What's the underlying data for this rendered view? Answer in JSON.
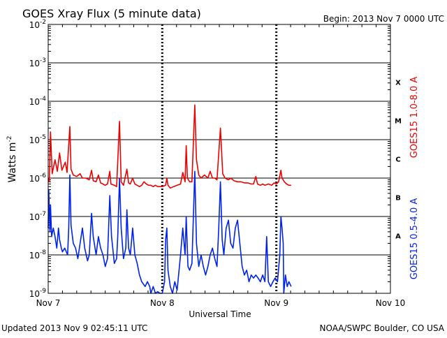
{
  "header": {
    "title": "GOES Xray Flux (5 minute data)",
    "begin": "Begin:  2013 Nov 7 0000 UTC"
  },
  "footer": {
    "updated": "Updated 2013 Nov  9 02:45:11 UTC",
    "source": "NOAA/SWPC Boulder, CO USA"
  },
  "colors": {
    "long_channel": "#ee0000",
    "short_channel": "#0022ee",
    "grid": "#000000",
    "background": "#ffffff"
  },
  "chart_data": {
    "type": "line",
    "title": "GOES Xray Flux (5 minute data)",
    "xlabel": "Universal Time",
    "ylabel": "Watts m-2",
    "ylabel_base": "Watts m",
    "ylabel_exp": "-2",
    "y_scale": "log",
    "ylim": [
      1e-09,
      0.01
    ],
    "xlim_days": [
      0,
      3
    ],
    "x_ticks": [
      "Nov 7",
      "Nov 8",
      "Nov 9",
      "Nov 10"
    ],
    "y_ticks": [
      {
        "base": "10",
        "exp": "-2",
        "value": 0.01
      },
      {
        "base": "10",
        "exp": "-3",
        "value": 0.001
      },
      {
        "base": "10",
        "exp": "-4",
        "value": 0.0001
      },
      {
        "base": "10",
        "exp": "-5",
        "value": 1e-05
      },
      {
        "base": "10",
        "exp": "-6",
        "value": 1e-06
      },
      {
        "base": "10",
        "exp": "-7",
        "value": 1e-07
      },
      {
        "base": "10",
        "exp": "-8",
        "value": 1e-08
      },
      {
        "base": "10",
        "exp": "-9",
        "value": 1e-09
      }
    ],
    "flare_classes": [
      {
        "label": "X",
        "lower": 0.0001
      },
      {
        "label": "M",
        "lower": 1e-05
      },
      {
        "label": "C",
        "lower": 1e-06
      },
      {
        "label": "B",
        "lower": 1e-07
      },
      {
        "label": "A",
        "lower": 1e-08
      }
    ],
    "grid": true,
    "series": [
      {
        "name": "GOES15 1.0-8.0 A",
        "color": "#ee0000",
        "points": [
          [
            0.0,
            1e-06
          ],
          [
            0.01,
            8e-07
          ],
          [
            0.02,
            1.6e-05
          ],
          [
            0.035,
            1.3e-06
          ],
          [
            0.06,
            3e-06
          ],
          [
            0.08,
            1.5e-06
          ],
          [
            0.1,
            4.5e-06
          ],
          [
            0.12,
            1.6e-06
          ],
          [
            0.15,
            2.6e-06
          ],
          [
            0.165,
            1.4e-06
          ],
          [
            0.19,
            2.2e-05
          ],
          [
            0.2,
            1.7e-06
          ],
          [
            0.22,
            1.2e-06
          ],
          [
            0.25,
            1.1e-06
          ],
          [
            0.28,
            1.3e-06
          ],
          [
            0.3,
            1e-06
          ],
          [
            0.33,
            1e-06
          ],
          [
            0.36,
            9e-07
          ],
          [
            0.38,
            1.6e-06
          ],
          [
            0.395,
            8.5e-07
          ],
          [
            0.42,
            8e-07
          ],
          [
            0.44,
            1.2e-06
          ],
          [
            0.46,
            7.5e-07
          ],
          [
            0.48,
            7e-07
          ],
          [
            0.5,
            6.5e-07
          ],
          [
            0.52,
            7e-07
          ],
          [
            0.54,
            1.5e-06
          ],
          [
            0.55,
            7e-07
          ],
          [
            0.58,
            6.5e-07
          ],
          [
            0.6,
            6e-07
          ],
          [
            0.625,
            3e-05
          ],
          [
            0.64,
            8e-07
          ],
          [
            0.66,
            6.5e-07
          ],
          [
            0.69,
            1.7e-06
          ],
          [
            0.705,
            7.5e-07
          ],
          [
            0.72,
            7e-07
          ],
          [
            0.74,
            1e-06
          ],
          [
            0.76,
            7e-07
          ],
          [
            0.78,
            6.5e-07
          ],
          [
            0.8,
            6e-07
          ],
          [
            0.82,
            6.5e-07
          ],
          [
            0.84,
            8e-07
          ],
          [
            0.86,
            7e-07
          ],
          [
            0.88,
            6.5e-07
          ],
          [
            0.9,
            6.5e-07
          ],
          [
            0.92,
            6e-07
          ],
          [
            0.94,
            6.5e-07
          ],
          [
            0.96,
            6e-07
          ],
          [
            0.98,
            6e-07
          ],
          [
            1.0,
            6e-07
          ],
          [
            1.03,
            6.5e-07
          ],
          [
            1.04,
            1e-06
          ],
          [
            1.05,
            6.5e-07
          ],
          [
            1.07,
            5.5e-07
          ],
          [
            1.1,
            6e-07
          ],
          [
            1.13,
            6.5e-07
          ],
          [
            1.16,
            7e-07
          ],
          [
            1.18,
            1.4e-06
          ],
          [
            1.2,
            8e-07
          ],
          [
            1.21,
            7e-06
          ],
          [
            1.22,
            1e-06
          ],
          [
            1.24,
            8e-07
          ],
          [
            1.26,
            8e-07
          ],
          [
            1.285,
            8e-05
          ],
          [
            1.3,
            3e-06
          ],
          [
            1.32,
            1.2e-06
          ],
          [
            1.34,
            1e-06
          ],
          [
            1.37,
            1.2e-06
          ],
          [
            1.4,
            1e-06
          ],
          [
            1.42,
            1.5e-06
          ],
          [
            1.44,
            1e-06
          ],
          [
            1.46,
            1e-06
          ],
          [
            1.48,
            9e-07
          ],
          [
            1.51,
            2e-05
          ],
          [
            1.53,
            1.3e-06
          ],
          [
            1.55,
            1e-06
          ],
          [
            1.58,
            9e-07
          ],
          [
            1.6,
            1e-06
          ],
          [
            1.63,
            8.5e-07
          ],
          [
            1.66,
            8e-07
          ],
          [
            1.69,
            8e-07
          ],
          [
            1.72,
            7.5e-07
          ],
          [
            1.75,
            7.5e-07
          ],
          [
            1.78,
            7e-07
          ],
          [
            1.8,
            7e-07
          ],
          [
            1.82,
            1.1e-06
          ],
          [
            1.835,
            7e-07
          ],
          [
            1.86,
            6.5e-07
          ],
          [
            1.88,
            7e-07
          ],
          [
            1.9,
            6.5e-07
          ],
          [
            1.93,
            7e-07
          ],
          [
            1.96,
            6.5e-07
          ],
          [
            1.98,
            7.5e-07
          ],
          [
            2.0,
            7e-07
          ],
          [
            2.02,
            8e-07
          ],
          [
            2.04,
            1.6e-06
          ],
          [
            2.05,
            1e-06
          ],
          [
            2.07,
            8e-07
          ],
          [
            2.09,
            7e-07
          ],
          [
            2.11,
            6.5e-07
          ],
          [
            2.13,
            6.5e-07
          ]
        ]
      },
      {
        "name": "GOES15 0.5-4.0 A",
        "color": "#0022ee",
        "points": [
          [
            0.0,
            5e-08
          ],
          [
            0.005,
            5e-07
          ],
          [
            0.015,
            4e-08
          ],
          [
            0.02,
            2e-07
          ],
          [
            0.03,
            3e-08
          ],
          [
            0.045,
            5e-08
          ],
          [
            0.06,
            3e-08
          ],
          [
            0.075,
            1.5e-08
          ],
          [
            0.09,
            5e-08
          ],
          [
            0.1,
            2.5e-08
          ],
          [
            0.115,
            1.5e-08
          ],
          [
            0.125,
            1.2e-08
          ],
          [
            0.145,
            1.5e-08
          ],
          [
            0.17,
            1e-08
          ],
          [
            0.18,
            5e-08
          ],
          [
            0.19,
            1.2e-06
          ],
          [
            0.2,
            6e-08
          ],
          [
            0.22,
            2e-08
          ],
          [
            0.24,
            1.5e-08
          ],
          [
            0.26,
            8e-09
          ],
          [
            0.28,
            2e-08
          ],
          [
            0.3,
            5e-08
          ],
          [
            0.32,
            1.5e-08
          ],
          [
            0.345,
            7e-09
          ],
          [
            0.36,
            1e-08
          ],
          [
            0.38,
            1.2e-07
          ],
          [
            0.395,
            3e-08
          ],
          [
            0.42,
            1e-08
          ],
          [
            0.44,
            3e-08
          ],
          [
            0.46,
            1.5e-08
          ],
          [
            0.48,
            1e-08
          ],
          [
            0.5,
            5e-09
          ],
          [
            0.52,
            8e-09
          ],
          [
            0.54,
            3.5e-07
          ],
          [
            0.555,
            3e-08
          ],
          [
            0.58,
            6e-09
          ],
          [
            0.6,
            8e-09
          ],
          [
            0.61,
            3e-08
          ],
          [
            0.625,
            1e-06
          ],
          [
            0.64,
            5e-08
          ],
          [
            0.66,
            8e-09
          ],
          [
            0.68,
            1.5e-08
          ],
          [
            0.69,
            1.5e-07
          ],
          [
            0.705,
            1.5e-08
          ],
          [
            0.72,
            1e-08
          ],
          [
            0.74,
            5e-08
          ],
          [
            0.76,
            1e-08
          ],
          [
            0.78,
            6e-09
          ],
          [
            0.8,
            3e-09
          ],
          [
            0.82,
            2e-09
          ],
          [
            0.85,
            1.5e-09
          ],
          [
            0.87,
            2e-09
          ],
          [
            0.89,
            1.5e-09
          ],
          [
            0.9,
            1e-09
          ],
          [
            0.92,
            1.5e-09
          ],
          [
            0.94,
            1e-09
          ],
          [
            0.96,
            1.1e-09
          ],
          [
            0.98,
            1e-09
          ],
          [
            1.0,
            1e-09
          ],
          [
            1.02,
            2e-09
          ],
          [
            1.03,
            2.5e-08
          ],
          [
            1.04,
            5e-08
          ],
          [
            1.05,
            4e-09
          ],
          [
            1.07,
            1.5e-09
          ],
          [
            1.09,
            1e-09
          ],
          [
            1.11,
            2e-09
          ],
          [
            1.13,
            1.2e-09
          ],
          [
            1.16,
            1e-08
          ],
          [
            1.18,
            5e-08
          ],
          [
            1.2,
            1e-08
          ],
          [
            1.21,
            1e-07
          ],
          [
            1.225,
            5e-09
          ],
          [
            1.24,
            4e-09
          ],
          [
            1.26,
            6e-09
          ],
          [
            1.285,
            1.5e-06
          ],
          [
            1.3,
            2e-08
          ],
          [
            1.32,
            5e-09
          ],
          [
            1.34,
            1e-08
          ],
          [
            1.36,
            5e-09
          ],
          [
            1.38,
            3e-09
          ],
          [
            1.4,
            5e-09
          ],
          [
            1.42,
            1e-08
          ],
          [
            1.44,
            1.5e-08
          ],
          [
            1.46,
            8e-09
          ],
          [
            1.48,
            5e-09
          ],
          [
            1.495,
            5e-08
          ],
          [
            1.51,
            8e-07
          ],
          [
            1.525,
            2.5e-08
          ],
          [
            1.54,
            1e-08
          ],
          [
            1.56,
            5e-08
          ],
          [
            1.58,
            8e-08
          ],
          [
            1.6,
            2e-08
          ],
          [
            1.62,
            1.5e-08
          ],
          [
            1.64,
            5e-08
          ],
          [
            1.66,
            8e-08
          ],
          [
            1.68,
            2e-08
          ],
          [
            1.7,
            5e-09
          ],
          [
            1.72,
            3e-09
          ],
          [
            1.74,
            4e-09
          ],
          [
            1.76,
            2e-09
          ],
          [
            1.78,
            3e-09
          ],
          [
            1.8,
            2.5e-09
          ],
          [
            1.82,
            3e-09
          ],
          [
            1.84,
            2.5e-09
          ],
          [
            1.86,
            2e-09
          ],
          [
            1.88,
            3e-09
          ],
          [
            1.9,
            2e-09
          ],
          [
            1.915,
            3e-08
          ],
          [
            1.93,
            2e-09
          ],
          [
            1.95,
            1.5e-09
          ],
          [
            1.97,
            2e-09
          ],
          [
            1.99,
            2.5e-09
          ],
          [
            2.01,
            2e-09
          ],
          [
            2.03,
            1e-08
          ],
          [
            2.04,
            1e-07
          ],
          [
            2.05,
            5e-08
          ],
          [
            2.06,
            2e-08
          ],
          [
            2.065,
            1e-09
          ],
          [
            2.08,
            3e-09
          ],
          [
            2.095,
            1.5e-09
          ],
          [
            2.11,
            2e-09
          ],
          [
            2.13,
            1.5e-09
          ]
        ]
      }
    ]
  }
}
